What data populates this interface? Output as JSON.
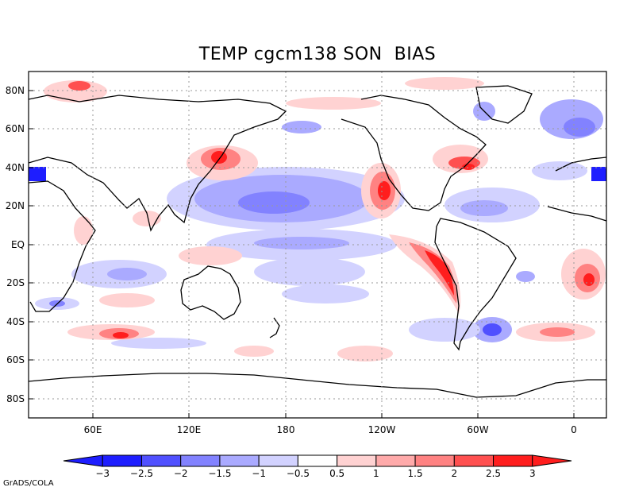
{
  "title": "TEMP cgcm138 SON  BIAS",
  "credit": "GrADS/COLA",
  "map": {
    "variable": "TEMP",
    "model": "cgcm138",
    "season": "SON",
    "field": "BIAS",
    "lat_labels": [
      "80N",
      "60N",
      "40N",
      "20N",
      "EQ",
      "20S",
      "40S",
      "60S",
      "80S"
    ],
    "lon_labels": [
      "60E",
      "120E",
      "180",
      "120W",
      "60W",
      "0"
    ],
    "lat_range": [
      -90,
      90
    ],
    "lon_range": [
      20,
      380
    ],
    "grid": "dotted",
    "colors": {
      "land_outline": "#000000",
      "neg_strong": "#1e1eff",
      "pos_strong": "#ff1e1e"
    }
  },
  "colorbar": {
    "labels": [
      "-3",
      "-2.5",
      "-2",
      "-1.5",
      "-1",
      "-0.5",
      "0.5",
      "1",
      "1.5",
      "2",
      "2.5",
      "3"
    ],
    "colors": [
      "#1e1eff",
      "#1e1eff",
      "#5050ff",
      "#8282ff",
      "#aaaaff",
      "#d2d2ff",
      "#ffffff",
      "#ffd2d2",
      "#ffaaaa",
      "#ff8282",
      "#ff5050",
      "#ff1e1e",
      "#ff1e1e"
    ]
  }
}
